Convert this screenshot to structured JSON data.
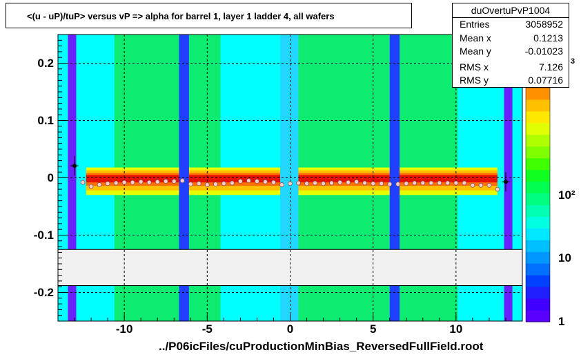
{
  "title": "<(u - uP)/tuP> versus   vP => alpha for barrel 1, layer 1 ladder 4, all wafers",
  "stats": {
    "name": "duOvertuPvP1004",
    "rows": [
      {
        "label": "Entries",
        "value": "3058952"
      },
      {
        "label": "Mean x",
        "value": "0.1213"
      },
      {
        "label": "Mean y",
        "value": "-0.01023"
      },
      {
        "label": "RMS x",
        "value": "7.126"
      },
      {
        "label": "RMS y",
        "value": "0.07716"
      }
    ]
  },
  "footer": "../P06icFiles/cuProductionMinBias_ReversedFullField.root",
  "palette_exponent_fragment": "3",
  "colors": {
    "background": "#00ffff",
    "grid": "#000000",
    "blank_band": "#f0f0f0",
    "profile_marker": "#ffcccc"
  },
  "chart_data": {
    "type": "heatmap",
    "title": "<(u - uP)/tuP> versus   vP => alpha for barrel 1, layer 1 ladder 4, all wafers",
    "xlabel": "",
    "ylabel": "",
    "xlim": [
      -14,
      14
    ],
    "ylim": [
      -0.25,
      0.25
    ],
    "x_ticks": [
      {
        "v": -10,
        "label": "-10"
      },
      {
        "v": -5,
        "label": "-5"
      },
      {
        "v": 0,
        "label": "0"
      },
      {
        "v": 5,
        "label": "5"
      },
      {
        "v": 10,
        "label": "10"
      }
    ],
    "y_ticks": [
      {
        "v": 0.2,
        "label": "0.2"
      },
      {
        "v": 0.1,
        "label": "0.1"
      },
      {
        "v": 0,
        "label": "0"
      },
      {
        "v": -0.1,
        "label": "-0.1"
      },
      {
        "v": -0.2,
        "label": "-0.2"
      }
    ],
    "grid": true,
    "colorbar": {
      "scale": "log",
      "range": [
        1,
        5000
      ],
      "ticks": [
        {
          "v": 1,
          "label": "1"
        },
        {
          "v": 10,
          "label": "10"
        },
        {
          "v": 100,
          "label": "10²"
        }
      ],
      "colors": [
        "#5a00ff",
        "#4000ff",
        "#2020ff",
        "#0040ff",
        "#0070ff",
        "#0098ff",
        "#00c0ff",
        "#00e8ff",
        "#00ffe0",
        "#00ffb0",
        "#00ff80",
        "#00ff50",
        "#10ff20",
        "#40ff00",
        "#80ff00",
        "#b0ff00",
        "#e0ff00",
        "#ffe800",
        "#ffc000",
        "#ff9000"
      ]
    },
    "blank_band": [
      -0.188,
      -0.125
    ],
    "vertical_bands": [
      {
        "x0": -13.4,
        "x1": -12.9,
        "color": "#6a20ff"
      },
      {
        "x0": -6.7,
        "x1": -6.1,
        "color": "#2040ff"
      },
      {
        "x0": -0.6,
        "x1": 0.5,
        "color": "#20d8ff"
      },
      {
        "x0": 6.0,
        "x1": 6.6,
        "color": "#2040ff"
      },
      {
        "x0": 12.9,
        "x1": 13.4,
        "color": "#6a20ff"
      }
    ],
    "green_regions": [
      {
        "x0": -10.6,
        "x1": -6.7
      },
      {
        "x0": -6.1,
        "x1": -4.2
      },
      {
        "x0": 0.5,
        "x1": 6.0
      },
      {
        "x0": 6.6,
        "x1": 10.1
      }
    ],
    "hot_band_y": [
      -0.012,
      0.008
    ],
    "profile": {
      "x": [
        -13.0,
        -12.5,
        -12.0,
        -11.5,
        -11.0,
        -10.5,
        -10.0,
        -9.5,
        -9.0,
        -8.5,
        -8.0,
        -7.5,
        -7.0,
        -6.5,
        -6.0,
        -5.5,
        -5.0,
        -4.5,
        -4.0,
        -3.5,
        -3.0,
        -2.5,
        -2.0,
        -1.5,
        -1.0,
        -0.5,
        0.0,
        0.5,
        1.0,
        1.5,
        2.0,
        2.5,
        3.0,
        3.5,
        4.0,
        4.5,
        5.0,
        5.5,
        6.0,
        6.5,
        7.0,
        7.5,
        8.0,
        8.5,
        9.0,
        9.5,
        10.0,
        10.5,
        11.0,
        11.5,
        12.0,
        12.5,
        13.0
      ],
      "y": [
        0.021,
        -0.008,
        -0.015,
        -0.012,
        -0.01,
        -0.009,
        -0.008,
        -0.008,
        -0.007,
        -0.008,
        -0.007,
        -0.006,
        -0.006,
        -0.005,
        -0.011,
        -0.01,
        -0.012,
        -0.011,
        -0.01,
        -0.009,
        -0.006,
        -0.005,
        -0.006,
        -0.007,
        -0.008,
        -0.012,
        -0.01,
        -0.009,
        -0.01,
        -0.009,
        -0.01,
        -0.009,
        -0.008,
        -0.008,
        -0.007,
        -0.009,
        -0.01,
        -0.01,
        -0.011,
        -0.011,
        -0.01,
        -0.009,
        -0.009,
        -0.009,
        -0.009,
        -0.009,
        -0.009,
        -0.009,
        -0.013,
        -0.013,
        -0.013,
        -0.02,
        -0.007
      ]
    }
  }
}
